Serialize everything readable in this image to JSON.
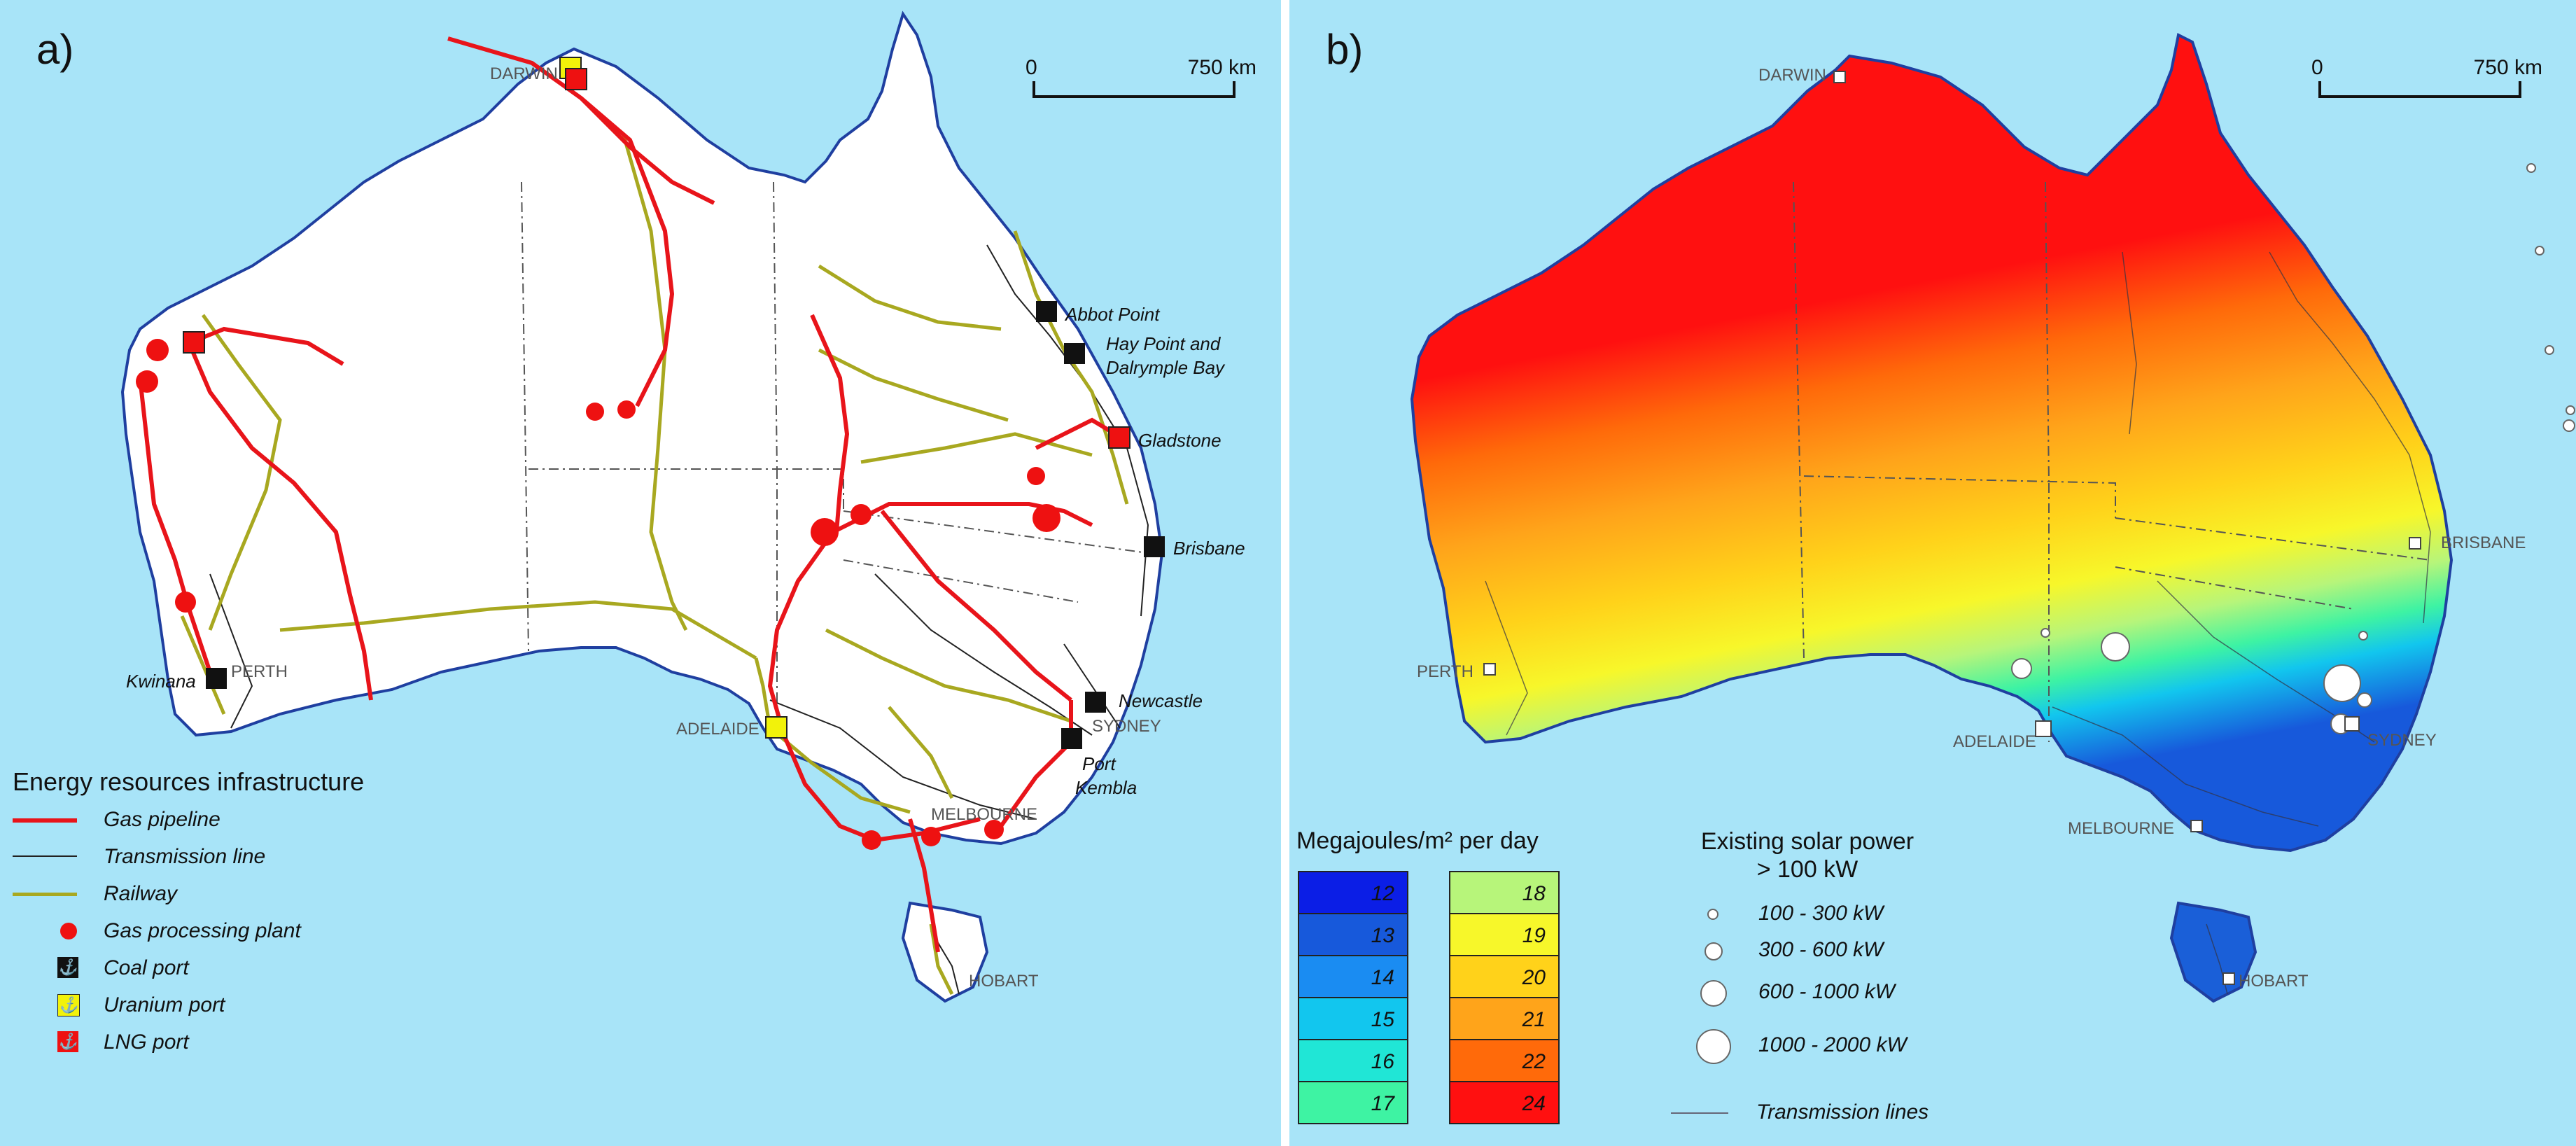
{
  "panel_a": {
    "label": "a)",
    "scale": {
      "start": "0",
      "end": "750 km"
    },
    "cities": [
      "DARWIN",
      "PERTH",
      "ADELAIDE",
      "MELBOURNE",
      "SYDNEY",
      "HOBART"
    ],
    "ports": [
      "Abbot Point",
      "Hay Point and",
      "Dalrymple Bay",
      "Gladstone",
      "Brisbane",
      "Newcastle",
      "Port",
      "Kembla",
      "Kwinana"
    ],
    "legend": {
      "title": "Energy resources infrastructure",
      "items": [
        {
          "label": "Gas pipeline",
          "color": "#e8141a"
        },
        {
          "label": "Transmission line",
          "color": "#222222"
        },
        {
          "label": "Railway",
          "color": "#a8a820"
        },
        {
          "label": "Gas processing plant",
          "color": "#ee1111"
        },
        {
          "label": "Coal port",
          "color": "#111111"
        },
        {
          "label": "Uranium port",
          "color": "#f2f20a"
        },
        {
          "label": "LNG port",
          "color": "#ee1111"
        }
      ]
    }
  },
  "panel_b": {
    "label": "b)",
    "scale": {
      "start": "0",
      "end": "750 km"
    },
    "cities": [
      "DARWIN",
      "PERTH",
      "ADELAIDE",
      "MELBOURNE",
      "SYDNEY",
      "HOBART",
      "BRISBANE"
    ],
    "energy_legend": {
      "title": "Megajoules/m² per day",
      "col1": [
        {
          "value": "12",
          "color": "#0b1ee6"
        },
        {
          "value": "13",
          "color": "#1759db"
        },
        {
          "value": "14",
          "color": "#1a8cf2"
        },
        {
          "value": "15",
          "color": "#12c6ee"
        },
        {
          "value": "16",
          "color": "#20e6d6"
        },
        {
          "value": "17",
          "color": "#3ef3a3"
        }
      ],
      "col2": [
        {
          "value": "18",
          "color": "#b7f57a"
        },
        {
          "value": "19",
          "color": "#f7f72a"
        },
        {
          "value": "20",
          "color": "#ffd21a"
        },
        {
          "value": "21",
          "color": "#ffa41a"
        },
        {
          "value": "22",
          "color": "#ff6a0a"
        },
        {
          "value": "24",
          "color": "#ff1010"
        }
      ]
    },
    "solar_legend": {
      "title_line1": "Existing solar power",
      "title_line2": "> 100 kW",
      "items": [
        "100 - 300 kW",
        "300 - 600 kW",
        "600 - 1000 kW",
        "1000 - 2000 kW"
      ],
      "transmission": "Transmission lines"
    }
  }
}
